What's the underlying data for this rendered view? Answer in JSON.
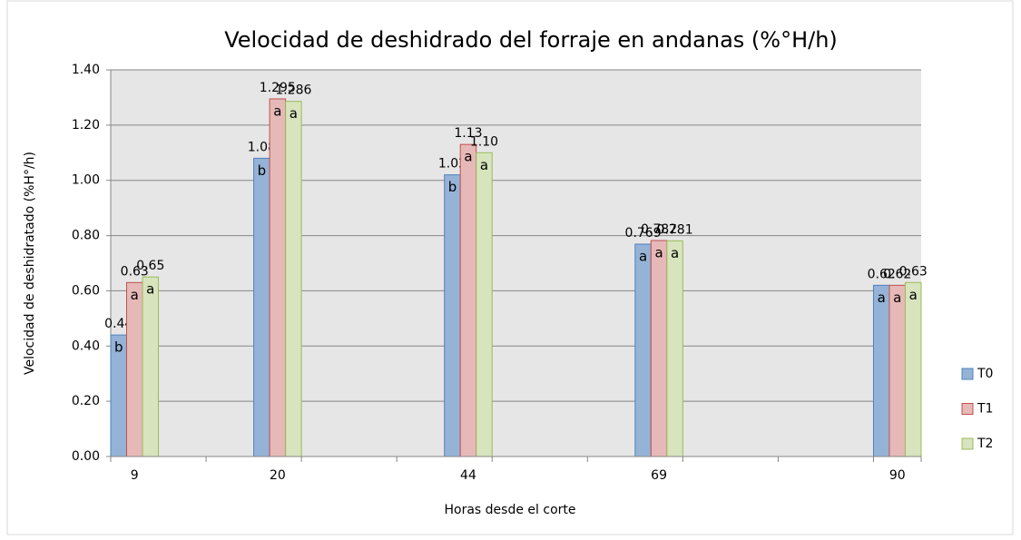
{
  "chart_data": {
    "type": "bar",
    "title": "Velocidad de deshidrado del forraje en andanas (%°H/h)",
    "x_label": "Horas desde el corte",
    "y_label": "Velocidad de deshidratado (%H°/h)",
    "categories": [
      "9",
      null,
      null,
      "20",
      null,
      null,
      null,
      "44",
      null,
      null,
      null,
      "69",
      null,
      null,
      null,
      null,
      "90"
    ],
    "series": [
      {
        "name": "T0",
        "color": "#95b3d7",
        "edge": "#4f81bd",
        "values": [
          0.44,
          null,
          null,
          1.08,
          null,
          null,
          null,
          1.02,
          null,
          null,
          null,
          0.769,
          null,
          null,
          null,
          null,
          0.62
        ],
        "value_labels": [
          "0.44",
          null,
          null,
          "1.08",
          null,
          null,
          null,
          "1.02",
          null,
          null,
          null,
          "0.769",
          null,
          null,
          null,
          null,
          "0.62"
        ],
        "letters": [
          "b",
          null,
          null,
          "b",
          null,
          null,
          null,
          "b",
          null,
          null,
          null,
          "a",
          null,
          null,
          null,
          null,
          "a"
        ]
      },
      {
        "name": "T1",
        "color": "#e6b9b8",
        "edge": "#c0504d",
        "values": [
          0.63,
          null,
          null,
          1.295,
          null,
          null,
          null,
          1.13,
          null,
          null,
          null,
          0.782,
          null,
          null,
          null,
          null,
          0.62
        ],
        "value_labels": [
          "0.63",
          null,
          null,
          "1.295",
          null,
          null,
          null,
          "1.13",
          null,
          null,
          null,
          "0.782",
          null,
          null,
          null,
          null,
          "0.62"
        ],
        "letters": [
          "a",
          null,
          null,
          "a",
          null,
          null,
          null,
          "a",
          null,
          null,
          null,
          "a",
          null,
          null,
          null,
          null,
          "a"
        ]
      },
      {
        "name": "T2",
        "color": "#d7e4bd",
        "edge": "#9bbb59",
        "values": [
          0.65,
          null,
          null,
          1.286,
          null,
          null,
          null,
          1.1,
          null,
          null,
          null,
          0.781,
          null,
          null,
          null,
          null,
          0.63
        ],
        "value_labels": [
          "0.65",
          null,
          null,
          "1.286",
          null,
          null,
          null,
          "1.10",
          null,
          null,
          null,
          "0.781",
          null,
          null,
          null,
          null,
          "0.63"
        ],
        "letters": [
          "a",
          null,
          null,
          "a",
          null,
          null,
          null,
          "a",
          null,
          null,
          null,
          "a",
          null,
          null,
          null,
          null,
          "a"
        ]
      }
    ],
    "ylim": [
      0,
      1.4
    ],
    "yticks": [
      {
        "value": 0,
        "label": "0.00"
      },
      {
        "value": 0.2,
        "label": "0.20"
      },
      {
        "value": 0.4,
        "label": "0.40"
      },
      {
        "value": 0.6,
        "label": "0.60"
      },
      {
        "value": 0.8,
        "label": "0.80"
      },
      {
        "value": 1.0,
        "label": "1.00"
      },
      {
        "value": 1.2,
        "label": "1.20"
      },
      {
        "value": 1.4,
        "label": "1.40"
      }
    ],
    "grid": true,
    "legend": "right"
  }
}
